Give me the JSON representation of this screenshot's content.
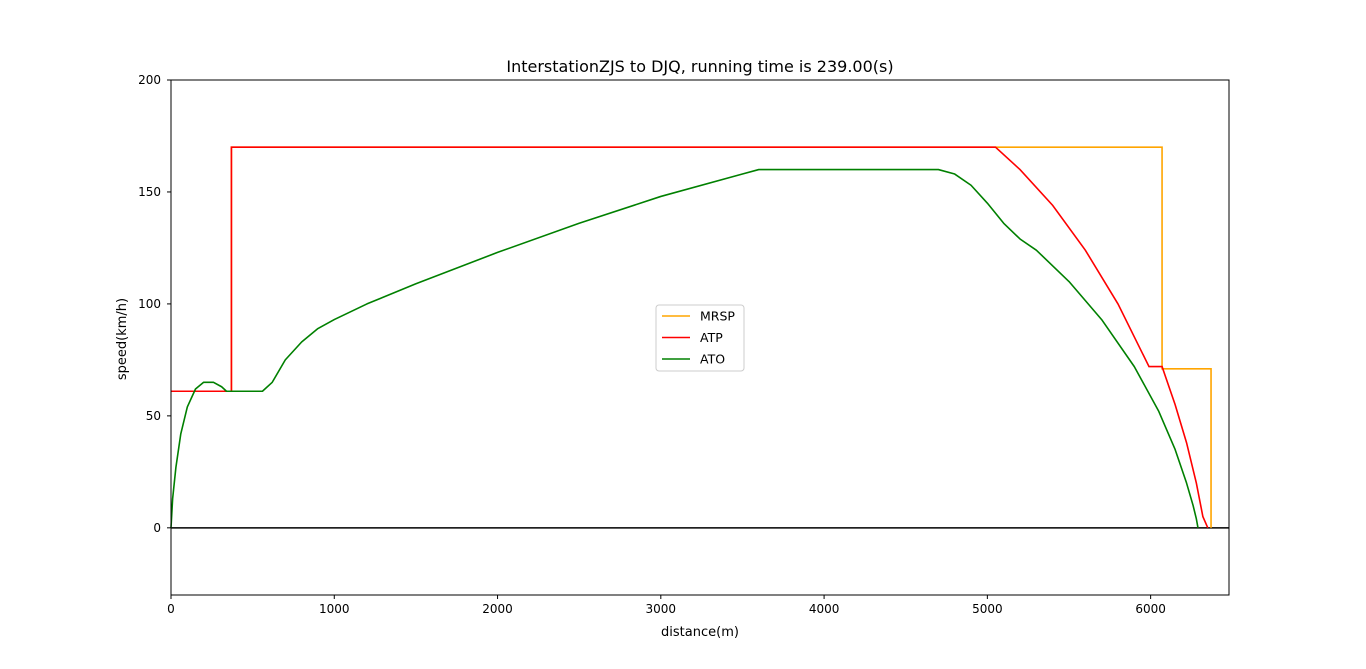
{
  "chart_data": {
    "type": "line",
    "title": "InterstationZJS to DJQ, running time is 239.00(s)",
    "xlabel": "distance(m)",
    "ylabel": "speed(km/h)",
    "xlim": [
      0,
      6480
    ],
    "ylim": [
      -30,
      200
    ],
    "xticks": [
      0,
      1000,
      2000,
      3000,
      4000,
      5000,
      6000
    ],
    "yticks": [
      0,
      50,
      100,
      150,
      200
    ],
    "grid": false,
    "legend_position": "center",
    "series": [
      {
        "name": "MRSP",
        "color": "#ffa500",
        "step": true,
        "x": [
          0,
          370,
          370,
          6070,
          6070,
          6370,
          6370
        ],
        "values": [
          61,
          61,
          170,
          170,
          71,
          71,
          0
        ]
      },
      {
        "name": "ATP",
        "color": "#ff0000",
        "step": true,
        "x": [
          0,
          370,
          370,
          5050,
          5200,
          5400,
          5600,
          5800,
          5990,
          6070,
          6150,
          6220,
          6280,
          6320,
          6350
        ],
        "values": [
          61,
          61,
          170,
          170,
          160,
          144,
          124,
          100,
          72,
          72,
          55,
          38,
          20,
          5,
          0
        ]
      },
      {
        "name": "ATO",
        "color": "#008000",
        "step": false,
        "x": [
          0,
          10,
          30,
          60,
          100,
          150,
          200,
          260,
          310,
          340,
          370,
          560,
          620,
          700,
          800,
          900,
          1000,
          1200,
          1500,
          2000,
          2500,
          3000,
          3500,
          3600,
          3700,
          4000,
          4500,
          4700,
          4800,
          4900,
          5000,
          5100,
          5200,
          5300,
          5500,
          5700,
          5900,
          6050,
          6150,
          6220,
          6260,
          6280,
          6290
        ],
        "values": [
          0,
          13,
          27,
          42,
          54,
          62,
          65,
          65,
          63,
          61,
          61,
          61,
          65,
          75,
          83,
          89,
          93,
          100,
          109,
          123,
          136,
          148,
          158,
          160,
          160,
          160,
          160,
          160,
          158,
          153,
          145,
          136,
          129,
          124,
          110,
          93,
          72,
          52,
          35,
          20,
          10,
          4,
          0
        ]
      }
    ],
    "reference_line": {
      "y": 0,
      "color": "#000000"
    }
  }
}
